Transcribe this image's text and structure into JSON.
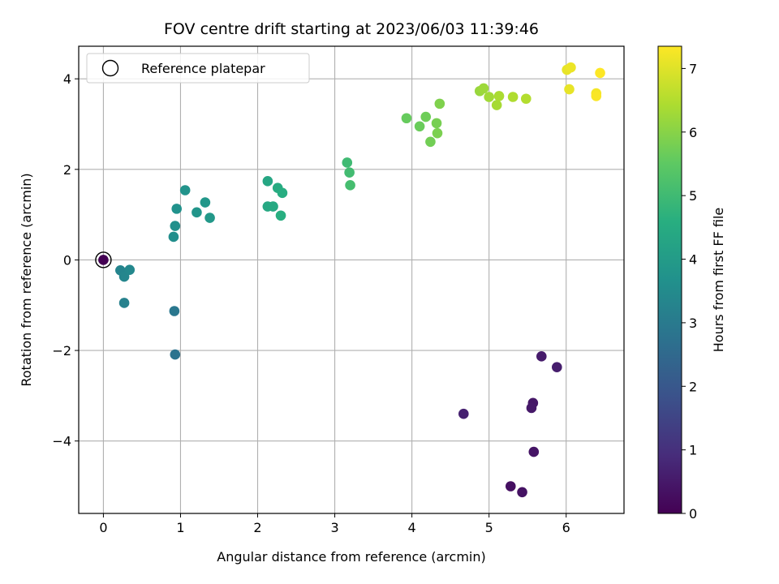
{
  "chart_data": {
    "type": "scatter",
    "title": "FOV centre drift starting at 2023/06/03 11:39:46",
    "xlabel": "Angular distance from reference (arcmin)",
    "ylabel": "Rotation from reference (arcmin)",
    "xlim": [
      -0.32,
      6.75
    ],
    "ylim": [
      -5.6,
      4.72
    ],
    "xticks": [
      0,
      1,
      2,
      3,
      4,
      5,
      6
    ],
    "yticks": [
      -4,
      -2,
      0,
      2,
      4
    ],
    "grid": true,
    "legend": {
      "position": "top-left",
      "entries": [
        "Reference platepar"
      ]
    },
    "colorbar": {
      "label": "Hours from first FF file",
      "colormap": "viridis",
      "range": [
        0,
        7.35
      ],
      "ticks": [
        0,
        1,
        2,
        3,
        4,
        5,
        6,
        7
      ]
    },
    "reference_point": {
      "x": 0,
      "y": 0
    },
    "points": [
      {
        "x": 0.0,
        "y": 0.0,
        "c": 0.0
      },
      {
        "x": 5.28,
        "y": -5.0,
        "c": 0.3
      },
      {
        "x": 5.43,
        "y": -5.13,
        "c": 0.35
      },
      {
        "x": 5.58,
        "y": -4.24,
        "c": 0.4
      },
      {
        "x": 5.57,
        "y": -3.16,
        "c": 0.45
      },
      {
        "x": 5.55,
        "y": -3.27,
        "c": 0.5
      },
      {
        "x": 5.68,
        "y": -2.13,
        "c": 0.55
      },
      {
        "x": 5.88,
        "y": -2.37,
        "c": 0.6
      },
      {
        "x": 4.67,
        "y": -3.4,
        "c": 0.65
      },
      {
        "x": 0.93,
        "y": -2.09,
        "c": 2.8
      },
      {
        "x": 0.92,
        "y": -1.13,
        "c": 2.9
      },
      {
        "x": 0.27,
        "y": -0.95,
        "c": 3.2
      },
      {
        "x": 0.22,
        "y": -0.23,
        "c": 3.3
      },
      {
        "x": 0.27,
        "y": -0.37,
        "c": 3.35
      },
      {
        "x": 0.34,
        "y": -0.22,
        "c": 3.4
      },
      {
        "x": 0.91,
        "y": 0.51,
        "c": 3.6
      },
      {
        "x": 0.93,
        "y": 0.75,
        "c": 3.65
      },
      {
        "x": 0.95,
        "y": 1.13,
        "c": 3.7
      },
      {
        "x": 1.06,
        "y": 1.54,
        "c": 3.75
      },
      {
        "x": 1.21,
        "y": 1.05,
        "c": 3.8
      },
      {
        "x": 1.32,
        "y": 1.27,
        "c": 3.85
      },
      {
        "x": 1.38,
        "y": 0.93,
        "c": 3.9
      },
      {
        "x": 2.13,
        "y": 1.74,
        "c": 4.35
      },
      {
        "x": 2.13,
        "y": 1.18,
        "c": 4.4
      },
      {
        "x": 2.2,
        "y": 1.18,
        "c": 4.45
      },
      {
        "x": 2.26,
        "y": 1.59,
        "c": 4.5
      },
      {
        "x": 2.32,
        "y": 1.48,
        "c": 4.55
      },
      {
        "x": 2.3,
        "y": 0.98,
        "c": 4.6
      },
      {
        "x": 3.16,
        "y": 2.15,
        "c": 5.0
      },
      {
        "x": 3.19,
        "y": 1.93,
        "c": 5.05
      },
      {
        "x": 3.2,
        "y": 1.65,
        "c": 5.1
      },
      {
        "x": 3.93,
        "y": 3.13,
        "c": 5.6
      },
      {
        "x": 4.1,
        "y": 2.95,
        "c": 5.65
      },
      {
        "x": 4.18,
        "y": 3.16,
        "c": 5.7
      },
      {
        "x": 4.24,
        "y": 2.61,
        "c": 5.75
      },
      {
        "x": 4.32,
        "y": 3.02,
        "c": 5.8
      },
      {
        "x": 4.33,
        "y": 2.8,
        "c": 5.85
      },
      {
        "x": 4.36,
        "y": 3.45,
        "c": 5.9
      },
      {
        "x": 4.88,
        "y": 3.73,
        "c": 6.2
      },
      {
        "x": 4.93,
        "y": 3.79,
        "c": 6.25
      },
      {
        "x": 5.0,
        "y": 3.6,
        "c": 6.3
      },
      {
        "x": 5.1,
        "y": 3.42,
        "c": 6.35
      },
      {
        "x": 5.13,
        "y": 3.62,
        "c": 6.4
      },
      {
        "x": 5.31,
        "y": 3.6,
        "c": 6.45
      },
      {
        "x": 5.48,
        "y": 3.56,
        "c": 6.5
      },
      {
        "x": 6.01,
        "y": 4.2,
        "c": 7.1
      },
      {
        "x": 6.06,
        "y": 4.25,
        "c": 7.15
      },
      {
        "x": 6.04,
        "y": 3.77,
        "c": 7.1
      },
      {
        "x": 6.39,
        "y": 3.68,
        "c": 7.25
      },
      {
        "x": 6.39,
        "y": 3.62,
        "c": 7.3
      },
      {
        "x": 6.44,
        "y": 4.13,
        "c": 7.35
      }
    ]
  }
}
